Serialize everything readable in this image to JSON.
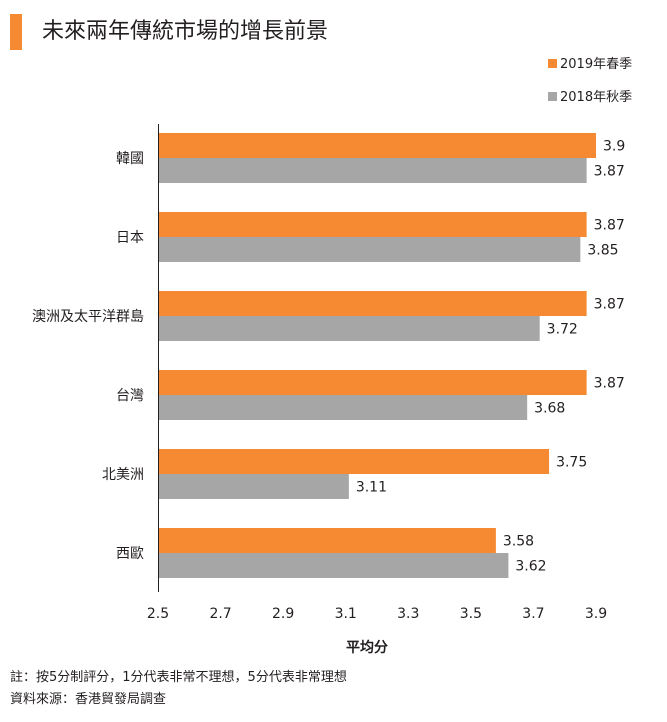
{
  "title": "未來兩年傳統市場的增長前景",
  "legend": [
    {
      "label": "2019年春季",
      "color": "#f58a32"
    },
    {
      "label": "2018年秋季",
      "color": "#a6a6a6"
    }
  ],
  "notes": {
    "line1": "註：按5分制評分，1分代表非常不理想，5分代表非常理想",
    "line2": "資料來源：香港貿發局調查"
  },
  "chart_data": {
    "type": "bar",
    "orientation": "horizontal",
    "categories": [
      "韓國",
      "日本",
      "澳洲及太平洋群島",
      "台灣",
      "北美洲",
      "西歐"
    ],
    "series": [
      {
        "name": "2019年春季",
        "color": "#f58a32",
        "values": [
          3.9,
          3.87,
          3.87,
          3.87,
          3.75,
          3.58
        ]
      },
      {
        "name": "2018年秋季",
        "color": "#a6a6a6",
        "values": [
          3.87,
          3.85,
          3.72,
          3.68,
          3.11,
          3.62
        ]
      }
    ],
    "value_labels": [
      [
        "3.9",
        "3.87",
        "3.87",
        "3.87",
        "3.75",
        "3.58"
      ],
      [
        "3.87",
        "3.85",
        "3.72",
        "3.68",
        "3.11",
        "3.62"
      ]
    ],
    "xlabel": "平均分",
    "xlim": [
      2.5,
      3.9
    ],
    "xticks": [
      "2.5",
      "2.7",
      "2.9",
      "3.1",
      "3.3",
      "3.5",
      "3.7",
      "3.9"
    ],
    "grid": false,
    "legend_position": "top-right"
  }
}
